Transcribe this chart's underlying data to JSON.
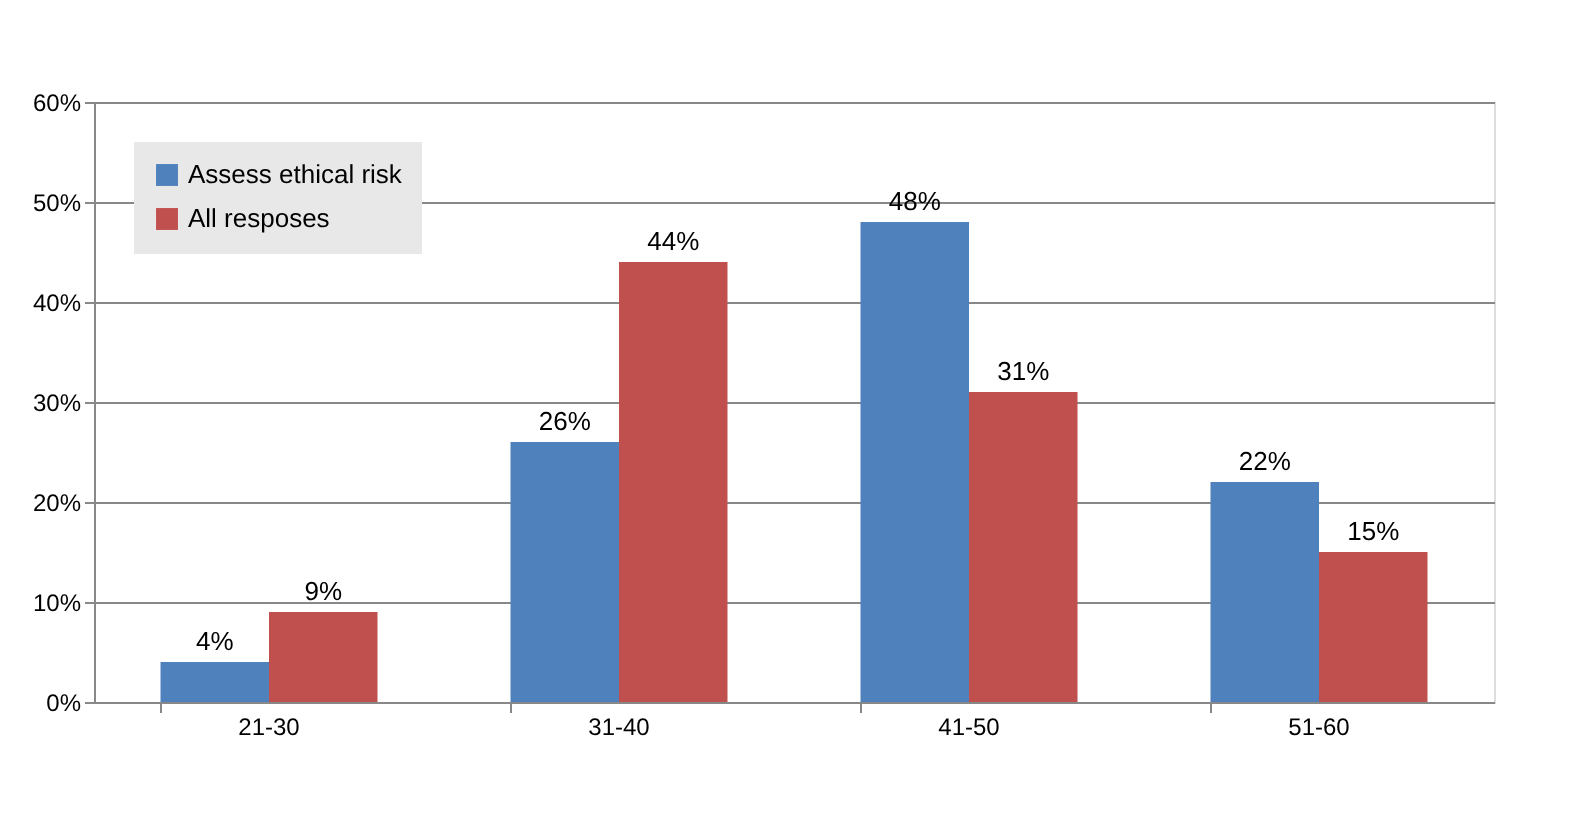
{
  "chart_data": {
    "type": "bar",
    "categories": [
      "21-30",
      "31-40",
      "41-50",
      "51-60"
    ],
    "series": [
      {
        "name": "Assess ethical risk",
        "color": "#4f81bd",
        "values": [
          4,
          26,
          48,
          22
        ],
        "value_labels": [
          "4%",
          "26%",
          "48%",
          "22%"
        ]
      },
      {
        "name": "All resposes",
        "color": "#c0504d",
        "values": [
          9,
          44,
          31,
          15
        ],
        "value_labels": [
          "9%",
          "44%",
          "31%",
          "15%"
        ]
      }
    ],
    "ylim": [
      0,
      60
    ],
    "yticks": [
      {
        "value": 0,
        "label": "0%"
      },
      {
        "value": 10,
        "label": "10%"
      },
      {
        "value": 20,
        "label": "20%"
      },
      {
        "value": 30,
        "label": "30%"
      },
      {
        "value": 40,
        "label": "40%"
      },
      {
        "value": 50,
        "label": "50%"
      },
      {
        "value": 60,
        "label": "60%"
      }
    ],
    "grid": "y",
    "legend": "top left"
  }
}
